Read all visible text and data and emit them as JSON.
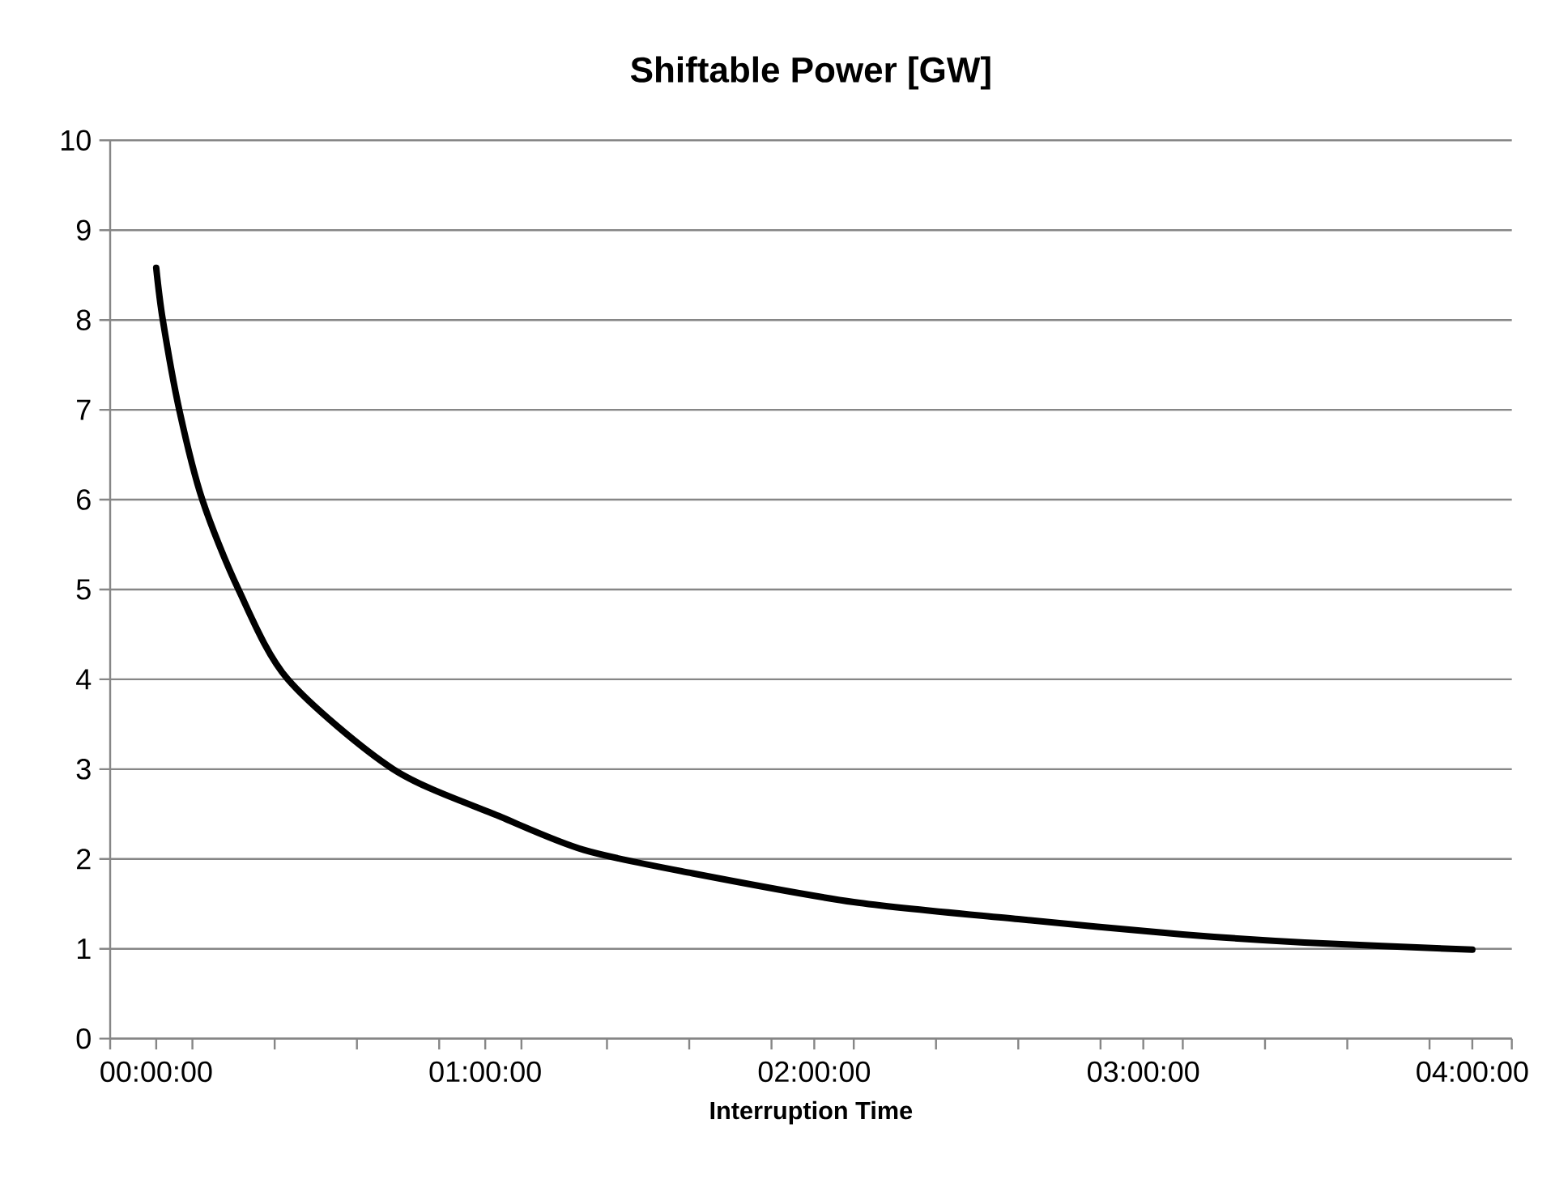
{
  "chart_data": {
    "type": "line",
    "title": "Shiftable Power [GW]",
    "xlabel": "Interruption Time",
    "color": "#000000",
    "grid": "y",
    "x": [
      0,
      0.02,
      0.07,
      0.14,
      0.25,
      0.4,
      0.72,
      1.04,
      1.3,
      1.63,
      2.12,
      2.62,
      3.12,
      3.49,
      4.0
    ],
    "values": [
      8.58,
      8.0,
      7.0,
      6.0,
      5.0,
      4.0,
      3.0,
      2.48,
      2.1,
      1.84,
      1.52,
      1.33,
      1.16,
      1.07,
      0.99
    ],
    "xlim": [
      -0.14,
      4.12
    ],
    "xticks": [
      {
        "value": 0,
        "label": "00:00:00"
      },
      {
        "value": 1,
        "label": "01:00:00"
      },
      {
        "value": 2,
        "label": "02:00:00"
      },
      {
        "value": 3,
        "label": "03:00:00"
      },
      {
        "value": 4,
        "label": "04:00:00"
      },
      {
        "value": -0.14,
        "label": null
      },
      {
        "value": 0.11,
        "label": null
      },
      {
        "value": 0.36,
        "label": null
      },
      {
        "value": 0.61,
        "label": null
      },
      {
        "value": 0.86,
        "label": null
      },
      {
        "value": 1.11,
        "label": null
      },
      {
        "value": 1.37,
        "label": null
      },
      {
        "value": 1.62,
        "label": null
      },
      {
        "value": 1.87,
        "label": null
      },
      {
        "value": 2.12,
        "label": null
      },
      {
        "value": 2.37,
        "label": null
      },
      {
        "value": 2.62,
        "label": null
      },
      {
        "value": 2.87,
        "label": null
      },
      {
        "value": 3.12,
        "label": null
      },
      {
        "value": 3.37,
        "label": null
      },
      {
        "value": 3.62,
        "label": null
      },
      {
        "value": 3.87,
        "label": null
      },
      {
        "value": 4.12,
        "label": null
      }
    ],
    "ylim": [
      0,
      10
    ],
    "yticks": [
      0,
      1,
      2,
      3,
      4,
      5,
      6,
      7,
      8,
      9,
      10
    ]
  }
}
